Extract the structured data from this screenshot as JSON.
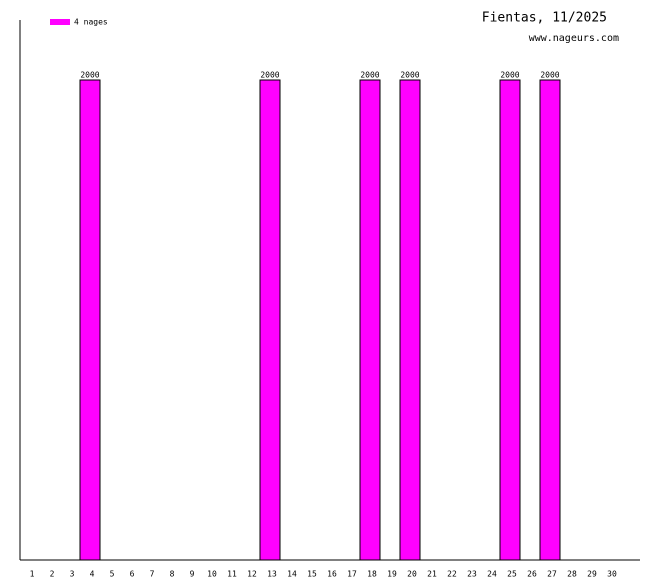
{
  "chart_data": {
    "type": "bar",
    "title": "Fientas, 11/2025",
    "subtitle": "www.nageurs.com",
    "categories": [
      "1",
      "2",
      "3",
      "4",
      "5",
      "6",
      "7",
      "8",
      "9",
      "10",
      "11",
      "12",
      "13",
      "14",
      "15",
      "16",
      "17",
      "18",
      "19",
      "20",
      "21",
      "22",
      "23",
      "24",
      "25",
      "26",
      "27",
      "28",
      "29",
      "30"
    ],
    "series": [
      {
        "name": "4 nages",
        "color": "#ff00ff",
        "values": [
          null,
          null,
          null,
          2000,
          null,
          null,
          null,
          null,
          null,
          null,
          null,
          null,
          2000,
          null,
          null,
          null,
          null,
          2000,
          null,
          2000,
          null,
          null,
          null,
          null,
          2000,
          null,
          2000,
          null,
          null,
          null
        ]
      }
    ]
  }
}
